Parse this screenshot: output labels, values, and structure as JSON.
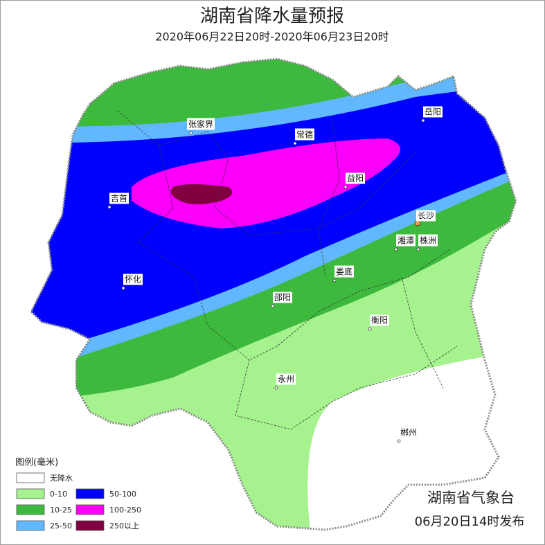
{
  "header": {
    "title": "湖南省降水量预报",
    "subtitle": "2020年06月22日20时-2020年06月23日20时"
  },
  "cities": [
    {
      "name": "张家界"
    },
    {
      "name": "常德"
    },
    {
      "name": "岳阳"
    },
    {
      "name": "益阳"
    },
    {
      "name": "吉首"
    },
    {
      "name": "长沙"
    },
    {
      "name": "湘潭"
    },
    {
      "name": "株洲"
    },
    {
      "name": "娄底"
    },
    {
      "name": "怀化"
    },
    {
      "name": "邵阳"
    },
    {
      "name": "衡阳"
    },
    {
      "name": "永州"
    },
    {
      "name": "郴州"
    }
  ],
  "legend": {
    "title": "图例(毫米)",
    "items": [
      {
        "label": "无降水",
        "color": "#ffffff"
      },
      {
        "label": "0-10",
        "color": "#a6f28f"
      },
      {
        "label": "10-25",
        "color": "#3dba3d"
      },
      {
        "label": "25-50",
        "color": "#61b8ff"
      },
      {
        "label": "50-100",
        "color": "#0000ff"
      },
      {
        "label": "100-250",
        "color": "#fa00fa"
      },
      {
        "label": "250以上",
        "color": "#800040"
      }
    ]
  },
  "footer": {
    "issuer": "湖南省气象台",
    "issued": "06月20日14时发布"
  }
}
